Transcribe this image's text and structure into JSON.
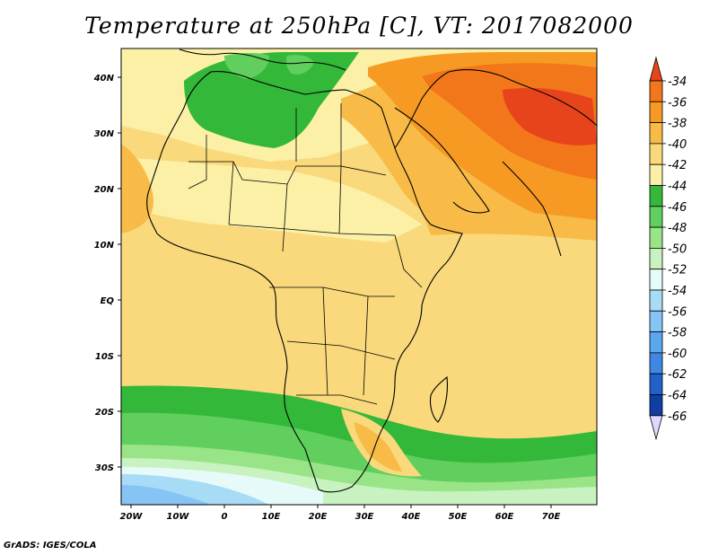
{
  "title": "Temperature at 250hPa [C], VT: 2017082000",
  "footer": "GrADS: IGES/COLA",
  "map": {
    "projection": "latlon",
    "lon_range": [
      -22,
      80
    ],
    "lat_range": [
      -36,
      45
    ],
    "lon_ticks": [
      "20W",
      "10W",
      "0",
      "10E",
      "20E",
      "30E",
      "40E",
      "50E",
      "60E",
      "70E"
    ],
    "lat_ticks": [
      "40N",
      "30N",
      "20N",
      "10N",
      "EQ",
      "10S",
      "20S",
      "30S"
    ],
    "variable": "Temperature at 250hPa",
    "units": "C"
  },
  "colorbar": {
    "labels": [
      "-34",
      "-36",
      "-38",
      "-40",
      "-42",
      "-44",
      "-46",
      "-48",
      "-50",
      "-52",
      "-54",
      "-56",
      "-58",
      "-60",
      "-62",
      "-64",
      "-66"
    ],
    "colors": [
      "#e8441c",
      "#f2771a",
      "#f79a23",
      "#f8bb47",
      "#f9d97b",
      "#fbf0a6",
      "#33b839",
      "#60cf5e",
      "#98e487",
      "#c8f2bf",
      "#e6fafa",
      "#a8dbf6",
      "#86c4f5",
      "#5aa6ef",
      "#3e87e4",
      "#2262c8",
      "#103ea2",
      "#081470",
      "#dcd8ff"
    ]
  }
}
